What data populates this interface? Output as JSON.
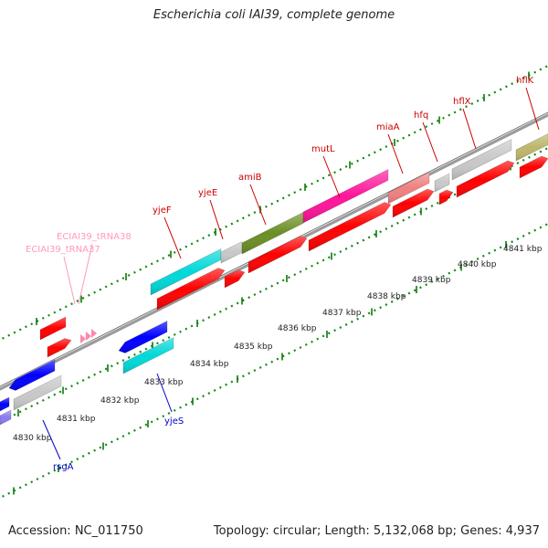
{
  "title": "Escherichia coli IAI39, complete genome",
  "footer": {
    "accession": "Accession: NC_011750",
    "summary": "Topology: circular; Length: 5,132,068 bp; Genes: 4,937"
  },
  "colors": {
    "gene_red": "#ff0000",
    "gene_blue": "#0000ff",
    "gene_cyan": "#00d8d8",
    "gene_gray": "#c8c8c8",
    "gene_magenta": "#ff149b",
    "gene_olive": "#6b8e23",
    "gene_salmon": "#f08080",
    "gene_khaki": "#bdb76b",
    "gene_purple": "#8a7cf0",
    "trna_pink": "#ff88aa",
    "label_red": "#cc0000",
    "label_blue": "#0000cc",
    "label_pink": "#ff99bb",
    "tick_green": "#118811",
    "backbone": "#8a8a8a"
  },
  "gene_labels": [
    {
      "name": "yjeF",
      "color": "label_red"
    },
    {
      "name": "yjeE",
      "color": "label_red"
    },
    {
      "name": "amiB",
      "color": "label_red"
    },
    {
      "name": "mutL",
      "color": "label_red"
    },
    {
      "name": "miaA",
      "color": "label_red"
    },
    {
      "name": "hfq",
      "color": "label_red"
    },
    {
      "name": "hflX",
      "color": "label_red"
    },
    {
      "name": "hflK",
      "color": "label_red"
    },
    {
      "name": "ECIAI39_tRNA38",
      "color": "label_pink"
    },
    {
      "name": "ECIAI39_tRNA37",
      "color": "label_pink"
    },
    {
      "name": "yjeS",
      "color": "label_blue"
    },
    {
      "name": "rsgA",
      "color": "label_blue"
    }
  ],
  "scale_labels": [
    "4830 kbp",
    "4831 kbp",
    "4832 kbp",
    "4833 kbp",
    "4834 kbp",
    "4835 kbp",
    "4836 kbp",
    "4837 kbp",
    "4838 kbp",
    "4839 kbp",
    "4840 kbp",
    "4841 kbp"
  ]
}
